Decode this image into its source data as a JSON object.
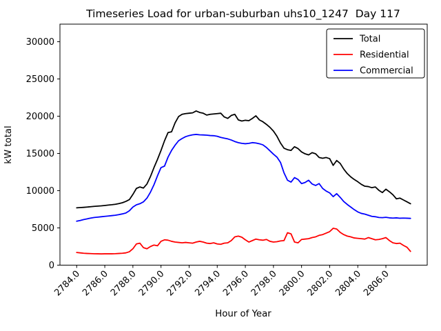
{
  "figure": {
    "title": "Timeseries Load for urban-suburban uhs10_1247  Day 117",
    "xlabel": "Hour of Year",
    "ylabel": "kW total"
  },
  "chart_data": {
    "type": "line",
    "title": "Timeseries Load for urban-suburban uhs10_1247  Day 117",
    "xlabel": "Hour of Year",
    "ylabel": "kW total",
    "grid": false,
    "legend_position": "upper right",
    "x_start": 2784.0,
    "x_step": 0.25,
    "xlim": [
      2782.81,
      2808.94
    ],
    "ylim": [
      0,
      32360
    ],
    "x_ticks": [
      2784,
      2786,
      2788,
      2790,
      2792,
      2794,
      2796,
      2798,
      2800,
      2802,
      2804,
      2806
    ],
    "x_tick_labels": [
      "2784.0",
      "2786.0",
      "2788.0",
      "2790.0",
      "2792.0",
      "2794.0",
      "2796.0",
      "2798.0",
      "2800.0",
      "2802.0",
      "2804.0",
      "2806.0"
    ],
    "y_ticks": [
      0,
      5000,
      10000,
      15000,
      20000,
      25000,
      30000
    ],
    "y_tick_labels": [
      "0",
      "5000",
      "10000",
      "15000",
      "20000",
      "25000",
      "30000"
    ],
    "series": [
      {
        "name": "Total",
        "color": "#000000",
        "values": [
          7700,
          7730,
          7760,
          7800,
          7850,
          7890,
          7930,
          7960,
          8010,
          8070,
          8110,
          8170,
          8260,
          8380,
          8560,
          8800,
          9500,
          10300,
          10500,
          10350,
          10900,
          11900,
          13100,
          14200,
          15400,
          16700,
          17800,
          17900,
          19100,
          19950,
          20250,
          20350,
          20400,
          20450,
          20700,
          20500,
          20400,
          20150,
          20250,
          20300,
          20350,
          20400,
          19900,
          19700,
          20100,
          20250,
          19500,
          19350,
          19450,
          19400,
          19700,
          20050,
          19500,
          19250,
          18900,
          18500,
          18000,
          17300,
          16400,
          15700,
          15500,
          15400,
          15900,
          15650,
          15200,
          14950,
          14800,
          15100,
          14950,
          14450,
          14350,
          14450,
          14300,
          13400,
          14050,
          13650,
          12900,
          12300,
          11850,
          11500,
          11200,
          10850,
          10600,
          10550,
          10400,
          10500,
          10050,
          9750,
          10200,
          9850,
          9450,
          8900,
          9000,
          8750,
          8500,
          8250
        ]
      },
      {
        "name": "Residential",
        "color": "#ff0000",
        "values": [
          1700,
          1650,
          1600,
          1570,
          1550,
          1530,
          1520,
          1510,
          1520,
          1530,
          1520,
          1540,
          1570,
          1600,
          1650,
          1800,
          2200,
          2850,
          2950,
          2350,
          2200,
          2500,
          2700,
          2600,
          3200,
          3400,
          3350,
          3200,
          3100,
          3050,
          3000,
          3050,
          3000,
          2950,
          3100,
          3200,
          3100,
          2950,
          2900,
          3000,
          2850,
          2800,
          2950,
          3000,
          3300,
          3800,
          3900,
          3750,
          3400,
          3100,
          3300,
          3500,
          3400,
          3350,
          3450,
          3200,
          3100,
          3150,
          3250,
          3300,
          4350,
          4200,
          3100,
          3000,
          3450,
          3500,
          3550,
          3700,
          3800,
          4000,
          4100,
          4300,
          4500,
          4950,
          4850,
          4400,
          4100,
          3900,
          3800,
          3650,
          3600,
          3550,
          3500,
          3700,
          3550,
          3400,
          3450,
          3550,
          3700,
          3300,
          3000,
          2900,
          2950,
          2650,
          2400,
          1850
        ]
      },
      {
        "name": "Commercial",
        "color": "#0000ff",
        "values": [
          5900,
          6000,
          6120,
          6220,
          6320,
          6400,
          6450,
          6500,
          6550,
          6600,
          6650,
          6700,
          6780,
          6880,
          7000,
          7300,
          7800,
          8100,
          8250,
          8500,
          9000,
          9800,
          10800,
          12000,
          13100,
          13300,
          14500,
          15400,
          16100,
          16700,
          17000,
          17250,
          17400,
          17500,
          17550,
          17500,
          17480,
          17450,
          17400,
          17380,
          17300,
          17150,
          17050,
          16950,
          16800,
          16600,
          16450,
          16350,
          16300,
          16350,
          16450,
          16400,
          16300,
          16150,
          15800,
          15350,
          14900,
          14500,
          13800,
          12400,
          11400,
          11150,
          11750,
          11500,
          10950,
          11100,
          11400,
          10900,
          10700,
          10950,
          10300,
          9950,
          9700,
          9200,
          9600,
          9100,
          8550,
          8150,
          7800,
          7450,
          7150,
          6950,
          6850,
          6700,
          6550,
          6500,
          6400,
          6380,
          6420,
          6350,
          6320,
          6350,
          6300,
          6320,
          6300,
          6280
        ]
      }
    ]
  }
}
